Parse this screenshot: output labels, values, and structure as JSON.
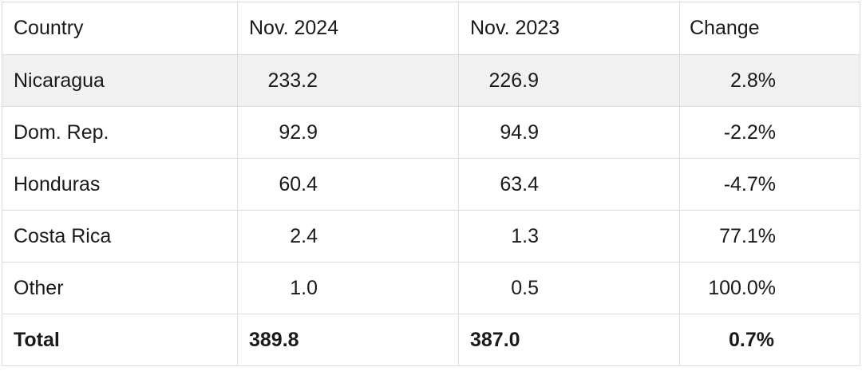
{
  "table": {
    "headers": [
      "Country",
      "Nov. 2024",
      "Nov. 2023",
      "Change"
    ],
    "rows": [
      [
        "Nicaragua",
        "233.2",
        "226.9",
        "2.8%"
      ],
      [
        "Dom. Rep.",
        "92.9",
        "94.9",
        "-2.2%"
      ],
      [
        "Honduras",
        "60.4",
        "63.4",
        "-4.7%"
      ],
      [
        "Costa Rica",
        "2.4",
        "1.3",
        "77.1%"
      ],
      [
        "Other",
        "1.0",
        "0.5",
        "100.0%"
      ]
    ],
    "total": [
      "Total",
      "389.8",
      "387.0",
      "0.7%"
    ]
  }
}
